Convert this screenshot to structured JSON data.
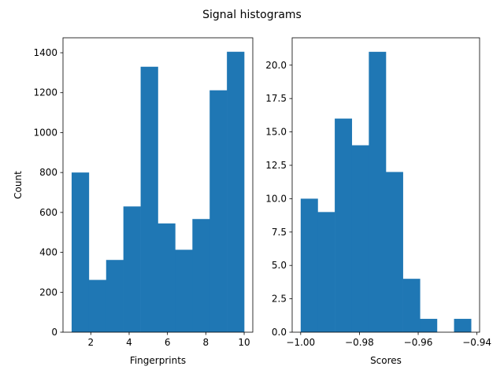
{
  "figure": {
    "title": "Signal histograms",
    "bar_color": "#1f77b4"
  },
  "chart_data": [
    {
      "type": "bar",
      "title": "",
      "xlabel": "Fingerprints",
      "ylabel": "Count",
      "bin_edges": [
        1.0,
        1.9,
        2.8,
        3.7,
        4.6,
        5.5,
        6.4,
        7.3,
        8.2,
        9.1,
        10.0
      ],
      "values": [
        800,
        262,
        362,
        630,
        1330,
        545,
        413,
        567,
        1212,
        1405
      ],
      "xlim": [
        0.55,
        10.45
      ],
      "ylim": [
        0,
        1475
      ],
      "xticks": [
        2,
        4,
        6,
        8,
        10
      ],
      "xtick_labels": [
        "2",
        "4",
        "6",
        "8",
        "10"
      ],
      "yticks": [
        0,
        200,
        400,
        600,
        800,
        1000,
        1200,
        1400
      ],
      "ytick_labels": [
        "0",
        "200",
        "400",
        "600",
        "800",
        "1000",
        "1200",
        "1400"
      ],
      "grid": false
    },
    {
      "type": "bar",
      "title": "",
      "xlabel": "Scores",
      "ylabel": "",
      "bin_edges": [
        -1.0,
        -0.9942,
        -0.9884,
        -0.9826,
        -0.9768,
        -0.971,
        -0.9652,
        -0.9594,
        -0.9536,
        -0.9478,
        -0.942
      ],
      "values": [
        10,
        9,
        16,
        14,
        21,
        12,
        4,
        1,
        0,
        1
      ],
      "xlim": [
        -1.0029,
        -0.9391
      ],
      "ylim": [
        0,
        22.05
      ],
      "xticks": [
        -1.0,
        -0.98,
        -0.96,
        -0.94
      ],
      "xtick_labels": [
        "−1.00",
        "−0.98",
        "−0.96",
        "−0.94"
      ],
      "yticks": [
        0,
        2.5,
        5,
        7.5,
        10,
        12.5,
        15,
        17.5,
        20
      ],
      "ytick_labels": [
        "0.0",
        "2.5",
        "5.0",
        "7.5",
        "10.0",
        "12.5",
        "15.0",
        "17.5",
        "20.0"
      ],
      "grid": false
    }
  ]
}
